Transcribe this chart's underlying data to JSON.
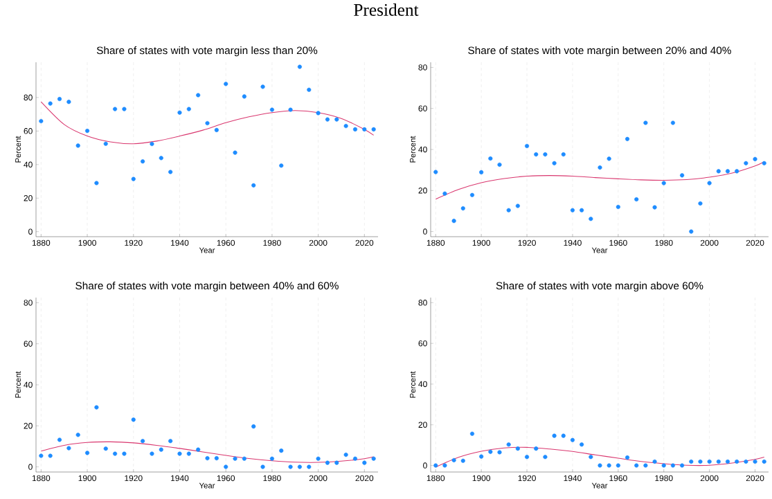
{
  "chart_data": [
    {
      "type": "other",
      "title": "President"
    },
    {
      "type": "scatter",
      "title": "Share of states with vote margin less than 20%",
      "xlabel": "Year",
      "ylabel": "Percent",
      "x": [
        1880,
        1884,
        1888,
        1892,
        1896,
        1900,
        1904,
        1908,
        1912,
        1916,
        1920,
        1924,
        1928,
        1932,
        1936,
        1940,
        1944,
        1948,
        1952,
        1956,
        1960,
        1964,
        1968,
        1972,
        1976,
        1980,
        1984,
        1988,
        1992,
        1996,
        2000,
        2004,
        2008,
        2012,
        2016,
        2020,
        2024
      ],
      "series": [
        {
          "color": "#1e8cff",
          "values": [
            65.9,
            76.4,
            79.1,
            77.4,
            51.3,
            60.1,
            29.0,
            52.4,
            73.1,
            73.1,
            31.4,
            41.9,
            52.3,
            43.9,
            35.6,
            71.0,
            73.1,
            81.4,
            64.7,
            60.6,
            88.1,
            47.1,
            80.6,
            27.6,
            86.4,
            72.7,
            39.4,
            72.7,
            98.3,
            84.6,
            70.7,
            66.9,
            66.9,
            63.0,
            61.0,
            61.0,
            61.0
          ]
        },
        {
          "type": "line",
          "marker": "none",
          "color": "#d9366e",
          "x": [
            1880,
            1890,
            1900,
            1910,
            1920,
            1930,
            1940,
            1950,
            1960,
            1970,
            1980,
            1990,
            2000,
            2010,
            2020,
            2024
          ],
          "values": [
            77.4,
            63.9,
            57.0,
            53.5,
            52.4,
            54.0,
            57.0,
            60.5,
            65.0,
            68.5,
            71.0,
            72.2,
            71.0,
            67.5,
            61.0,
            57.5
          ]
        }
      ],
      "xlim": [
        1877.8,
        2025.9
      ],
      "ylim": [
        -3,
        101
      ],
      "xticks": [
        1880,
        1900,
        1920,
        1940,
        1960,
        1980,
        2000,
        2020
      ],
      "yticks": [
        0,
        20,
        40,
        60,
        80
      ],
      "grid": "x",
      "marker": "circle"
    },
    {
      "type": "scatter",
      "title": "Share of states with vote margin between 20% and 40%",
      "xlabel": "Year",
      "ylabel": "Percent",
      "x": [
        1880,
        1884,
        1888,
        1892,
        1896,
        1900,
        1904,
        1908,
        1912,
        1916,
        1920,
        1924,
        1928,
        1932,
        1936,
        1940,
        1944,
        1948,
        1952,
        1956,
        1960,
        1964,
        1968,
        1972,
        1976,
        1980,
        1984,
        1988,
        1992,
        1996,
        2000,
        2004,
        2008,
        2012,
        2016,
        2020,
        2024
      ],
      "series": [
        {
          "color": "#1e8cff",
          "values": [
            29.0,
            18.5,
            5.2,
            11.3,
            17.8,
            28.9,
            35.6,
            32.6,
            10.4,
            12.5,
            41.7,
            37.6,
            37.6,
            33.3,
            37.6,
            10.4,
            10.4,
            6.2,
            31.2,
            35.5,
            12.0,
            45.1,
            15.7,
            53.0,
            11.8,
            23.6,
            53.0,
            27.4,
            0,
            13.7,
            23.6,
            29.4,
            29.4,
            29.4,
            33.3,
            35.3,
            33.3
          ]
        },
        {
          "type": "line",
          "marker": "none",
          "color": "#d9366e",
          "x": [
            1880,
            1890,
            1900,
            1910,
            1920,
            1930,
            1940,
            1950,
            1960,
            1970,
            1980,
            1990,
            2000,
            2010,
            2020,
            2024
          ],
          "values": [
            15.8,
            20.5,
            23.8,
            25.8,
            27.0,
            27.3,
            27.0,
            26.3,
            25.7,
            25.2,
            25.0,
            25.3,
            26.5,
            28.5,
            32.0,
            34.0
          ]
        }
      ],
      "xlim": [
        1877.8,
        2025.9
      ],
      "ylim": [
        -2.5,
        82.5
      ],
      "xticks": [
        1880,
        1900,
        1920,
        1940,
        1960,
        1980,
        2000,
        2020
      ],
      "yticks": [
        0,
        20,
        40,
        60,
        80
      ],
      "grid": "x",
      "marker": "circle"
    },
    {
      "type": "scatter",
      "title": "Share of states with vote margin between 40% and 60%",
      "xlabel": "Year",
      "ylabel": "Percent",
      "x": [
        1880,
        1884,
        1888,
        1892,
        1896,
        1900,
        1904,
        1908,
        1912,
        1916,
        1920,
        1924,
        1928,
        1932,
        1936,
        1940,
        1944,
        1948,
        1952,
        1956,
        1960,
        1964,
        1968,
        1972,
        1976,
        1980,
        1984,
        1988,
        1992,
        1996,
        2000,
        2004,
        2008,
        2012,
        2016,
        2020,
        2024
      ],
      "series": [
        {
          "color": "#1e8cff",
          "values": [
            5.4,
            5.4,
            13.2,
            9.1,
            15.6,
            6.8,
            29.0,
            8.9,
            6.4,
            6.4,
            23.0,
            12.6,
            6.4,
            8.4,
            12.6,
            6.4,
            6.4,
            8.4,
            4.2,
            4.2,
            0,
            4.0,
            4.0,
            19.7,
            0,
            4.0,
            7.9,
            0,
            0,
            0,
            4.0,
            2.0,
            2.0,
            5.9,
            4.0,
            2.0,
            4.0
          ]
        },
        {
          "type": "line",
          "marker": "none",
          "color": "#d9366e",
          "x": [
            1880,
            1890,
            1900,
            1910,
            1920,
            1930,
            1940,
            1950,
            1960,
            1970,
            1980,
            1990,
            2000,
            2010,
            2020,
            2024
          ],
          "values": [
            7.7,
            10.5,
            11.9,
            12.2,
            11.7,
            10.5,
            9.0,
            7.3,
            5.6,
            4.1,
            3.0,
            2.3,
            2.2,
            2.8,
            4.0,
            4.9
          ]
        }
      ],
      "xlim": [
        1877.8,
        2025.9
      ],
      "ylim": [
        -2.5,
        82.5
      ],
      "xticks": [
        1880,
        1900,
        1920,
        1940,
        1960,
        1980,
        2000,
        2020
      ],
      "yticks": [
        0,
        20,
        40,
        60,
        80
      ],
      "grid": "x",
      "marker": "circle"
    },
    {
      "type": "scatter",
      "title": "Share of states with vote margin above 60%",
      "xlabel": "Year",
      "ylabel": "Percent",
      "x": [
        1880,
        1884,
        1888,
        1892,
        1896,
        1900,
        1904,
        1908,
        1912,
        1916,
        1920,
        1924,
        1928,
        1932,
        1936,
        1940,
        1944,
        1948,
        1952,
        1956,
        1960,
        1964,
        1968,
        1972,
        1976,
        1980,
        1984,
        1988,
        1992,
        1996,
        2000,
        2004,
        2008,
        2012,
        2016,
        2020,
        2024
      ],
      "series": [
        {
          "color": "#1e8cff",
          "values": [
            0,
            0,
            2.6,
            2.3,
            15.6,
            4.4,
            6.7,
            6.5,
            10.3,
            8.3,
            4.2,
            8.3,
            4.2,
            14.6,
            14.6,
            12.5,
            10.3,
            4.2,
            0,
            0,
            0,
            3.9,
            0,
            0,
            1.9,
            0,
            0,
            0,
            1.9,
            1.9,
            1.9,
            1.9,
            1.9,
            1.9,
            1.9,
            1.9,
            1.9
          ]
        },
        {
          "type": "line",
          "marker": "none",
          "color": "#d9366e",
          "x": [
            1880,
            1890,
            1900,
            1910,
            1920,
            1930,
            1940,
            1950,
            1960,
            1970,
            1980,
            1990,
            2000,
            2010,
            2020,
            2024
          ],
          "values": [
            -0.8,
            4.0,
            7.0,
            8.6,
            8.9,
            8.1,
            6.9,
            5.2,
            3.6,
            2.0,
            0.9,
            0.1,
            0.1,
            1.2,
            3.0,
            4.1
          ]
        }
      ],
      "xlim": [
        1877.8,
        2025.9
      ],
      "ylim": [
        -3.2,
        82.5
      ],
      "xticks": [
        1880,
        1900,
        1920,
        1940,
        1960,
        1980,
        2000,
        2020
      ],
      "yticks": [
        0,
        20,
        40,
        60,
        80
      ],
      "grid": "x",
      "marker": "circle"
    }
  ]
}
